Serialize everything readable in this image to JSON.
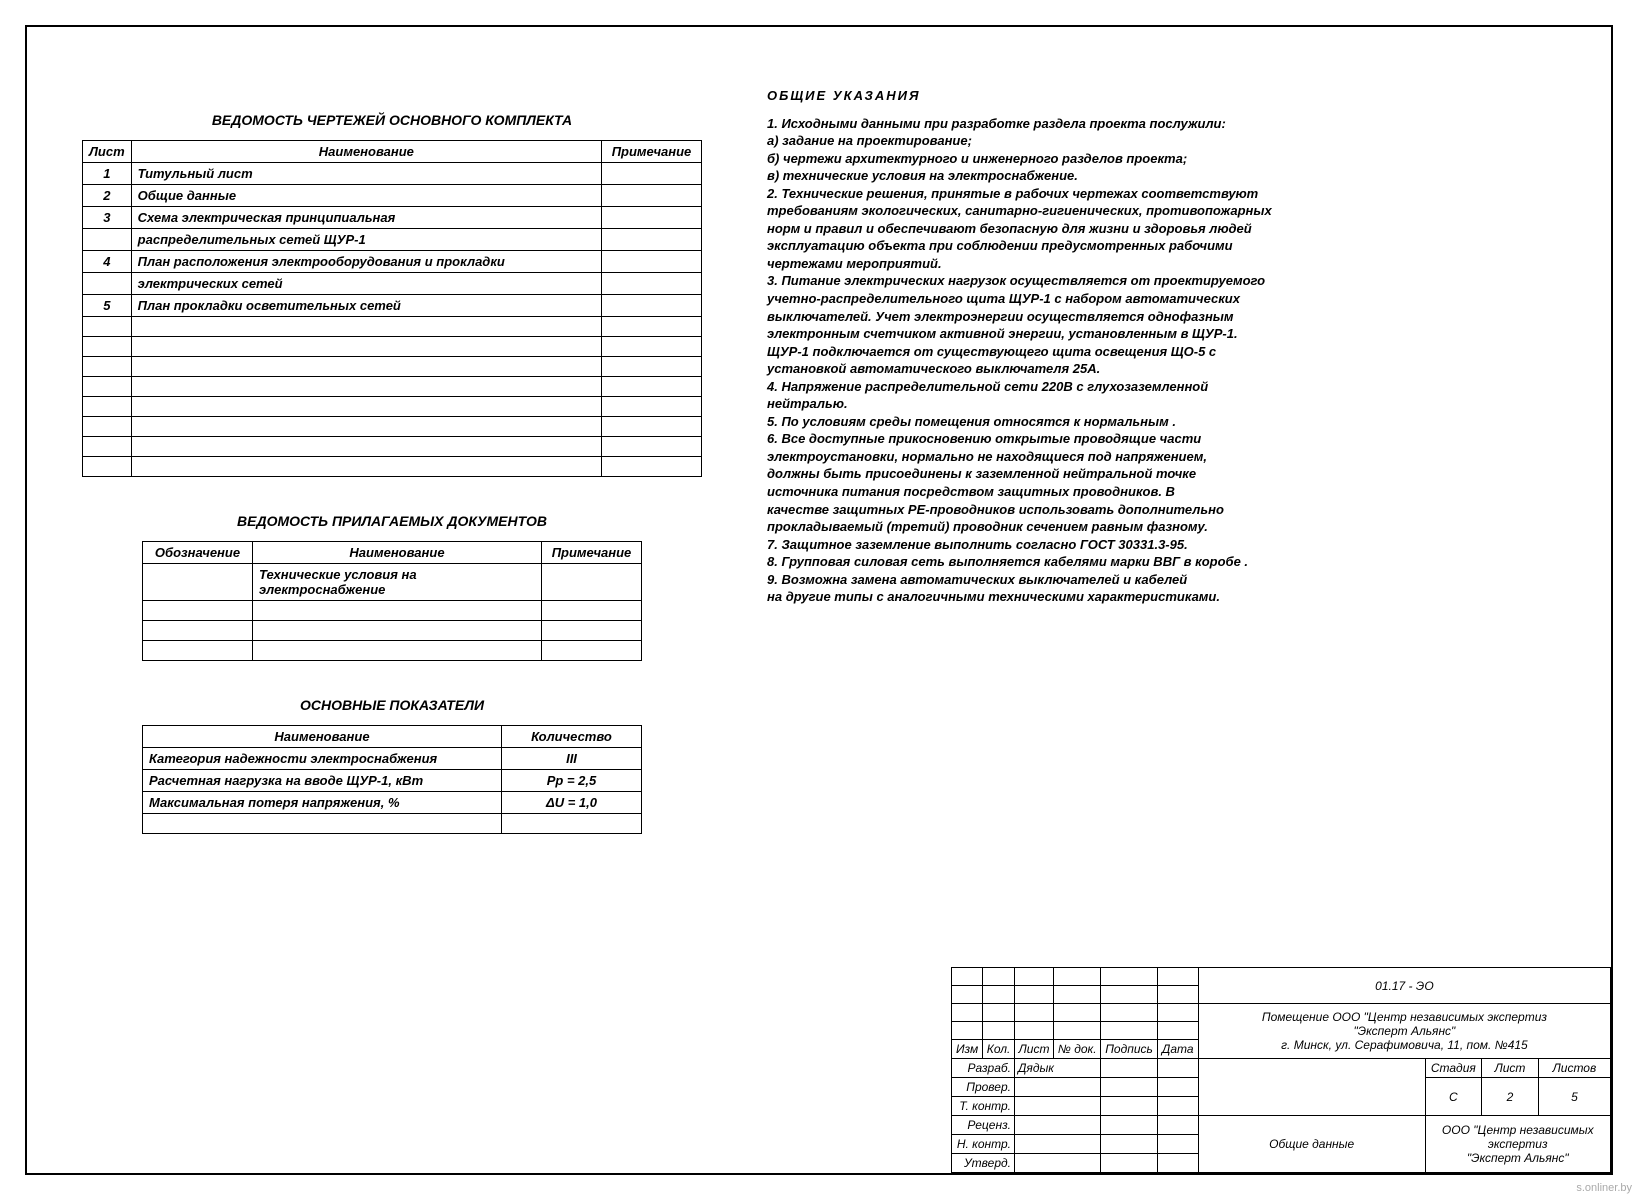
{
  "table1": {
    "title": "ВЕДОМОСТЬ  ЧЕРТЕЖЕЙ  ОСНОВНОГО  КОМПЛЕКТА",
    "columns": [
      "Лист",
      "Наименование",
      "Примечание"
    ],
    "rows": [
      {
        "n": "1",
        "name": "Титульный лист"
      },
      {
        "n": "2",
        "name": "Общие данные"
      },
      {
        "n": "3",
        "name": "Схема  электрическая  принципиальная"
      },
      {
        "n": "",
        "name": "распределительных  сетей ЩУР-1"
      },
      {
        "n": "4",
        "name": "План  расположения  электрооборудования  и прокладки"
      },
      {
        "n": "",
        "name": "электрических сетей"
      },
      {
        "n": "5",
        "name": "План прокладки осветительных  сетей"
      }
    ],
    "empty_rows": 8
  },
  "table2": {
    "title": "ВЕДОМОСТЬ  ПРИЛАГАЕМЫХ  ДОКУМЕНТОВ",
    "columns": [
      "Обозначение",
      "Наименование",
      "Примечание"
    ],
    "rows": [
      {
        "a": "",
        "b": "Технические  условия  на  электроснабжение",
        "c": ""
      }
    ],
    "empty_rows": 3
  },
  "table3": {
    "title": "ОСНОВНЫЕ  ПОКАЗАТЕЛИ",
    "columns": [
      "Наименование",
      "Количество"
    ],
    "rows": [
      {
        "a": "Категория  надежности  электроснабжения",
        "b": "III"
      },
      {
        "a": "Расчетная  нагрузка  на  вводе  ЩУР-1,  кВт",
        "b": "Рр = 2,5"
      },
      {
        "a": "Максимальная  потеря  напряжения, %",
        "b": "ΔU = 1,0"
      }
    ],
    "empty_rows": 1
  },
  "notes": {
    "heading": "ОБЩИЕ   УКАЗАНИЯ",
    "lines": [
      "1.    Исходными данными   при разработке раздела проекта послужили:",
      "        а)    задание на проектирование;",
      "        б)   чертежи архитектурного  и инженерного  разделов проекта;",
      "        в)   технические условия на электроснабжение.",
      "2.    Технические решения, принятые в рабочих чертежах соответствуют",
      "требованиям экологических, санитарно-гигиенических, противопожарных",
      "норм и правил и обеспечивают безопасную для жизни и здоровья людей",
      "эксплуатацию объекта при соблюдении предусмотренных рабочими",
      "чертежами мероприятий.",
      "3.    Питание электрических нагрузок осуществляется  от проектируемого",
      "учетно-распределительного  щита    ЩУР-1 с набором автоматических",
      "выключателей.  Учет  электроэнергии  осуществляется  однофазным",
      "электронным счетчиком активной энергии, установленным в   ЩУР-1.",
      "ЩУР-1 подключается  от существующего щита освещения ЩО-5  с",
      "установкой автоматического выключателя 25А.",
      "4.    Напряжение распределительной сети 220В с  глухозаземленной",
      "нейтралью.",
      "5.    По  условиям среды помещения  относятся  к нормальным .",
      "6.    Все  доступные  прикосновению  открытые   проводящие  части",
      "электроустановки,   нормально не находящиеся под напряжением,",
      "должны быть  присоединены к  заземленной  нейтральной  точке",
      "источника  питания  посредством  защитных  проводников.    В",
      "качестве  защитных  РЕ-проводников   использовать  дополнительно",
      "прокладываемый (третий)  проводник  сечением   равным   фазному.",
      "7.    Защитное   заземление  выполнить  согласно   ГОСТ 30331.3-95.",
      "8.    Групповая  силовая сеть выполняется кабелями  марки  ВВГ в коробе .",
      "9.    Возможна  замена  автоматических   выключателей и кабелей",
      "на другие типы с аналогичными техническими характеристиками."
    ]
  },
  "titleblock": {
    "code": "01.17 - ЭО",
    "project_l1": "Помещение ООО \"Центр независимых экспертиз",
    "project_l2": "\"Эксперт Альянс\"",
    "project_l3": "г. Минск, ул. Серафимовича, 11, пом. №415",
    "hdr": {
      "izm": "Изм",
      "kol": "Кол.",
      "list": "Лист",
      "ndok": "№ док.",
      "podpis": "Подпись",
      "data": "Дата"
    },
    "rows": {
      "razrab": "Разраб.",
      "razrab_name": "Дядык",
      "prover": "Провер.",
      "tkontr": "Т. контр.",
      "recenz": "Реценз.",
      "nkontr": "Н. контр.",
      "utverd": "Утверд."
    },
    "stage_hdr": "Стадия",
    "list_hdr": "Лист",
    "listov_hdr": "Листов",
    "stage": "С",
    "list": "2",
    "listov": "5",
    "sheet_name": "Общие  данные",
    "org_l1": "ООО \"Центр независимых",
    "org_l2": "экспертиз",
    "org_l3": "\"Эксперт Альянс\""
  },
  "watermark": "s.onliner.by"
}
